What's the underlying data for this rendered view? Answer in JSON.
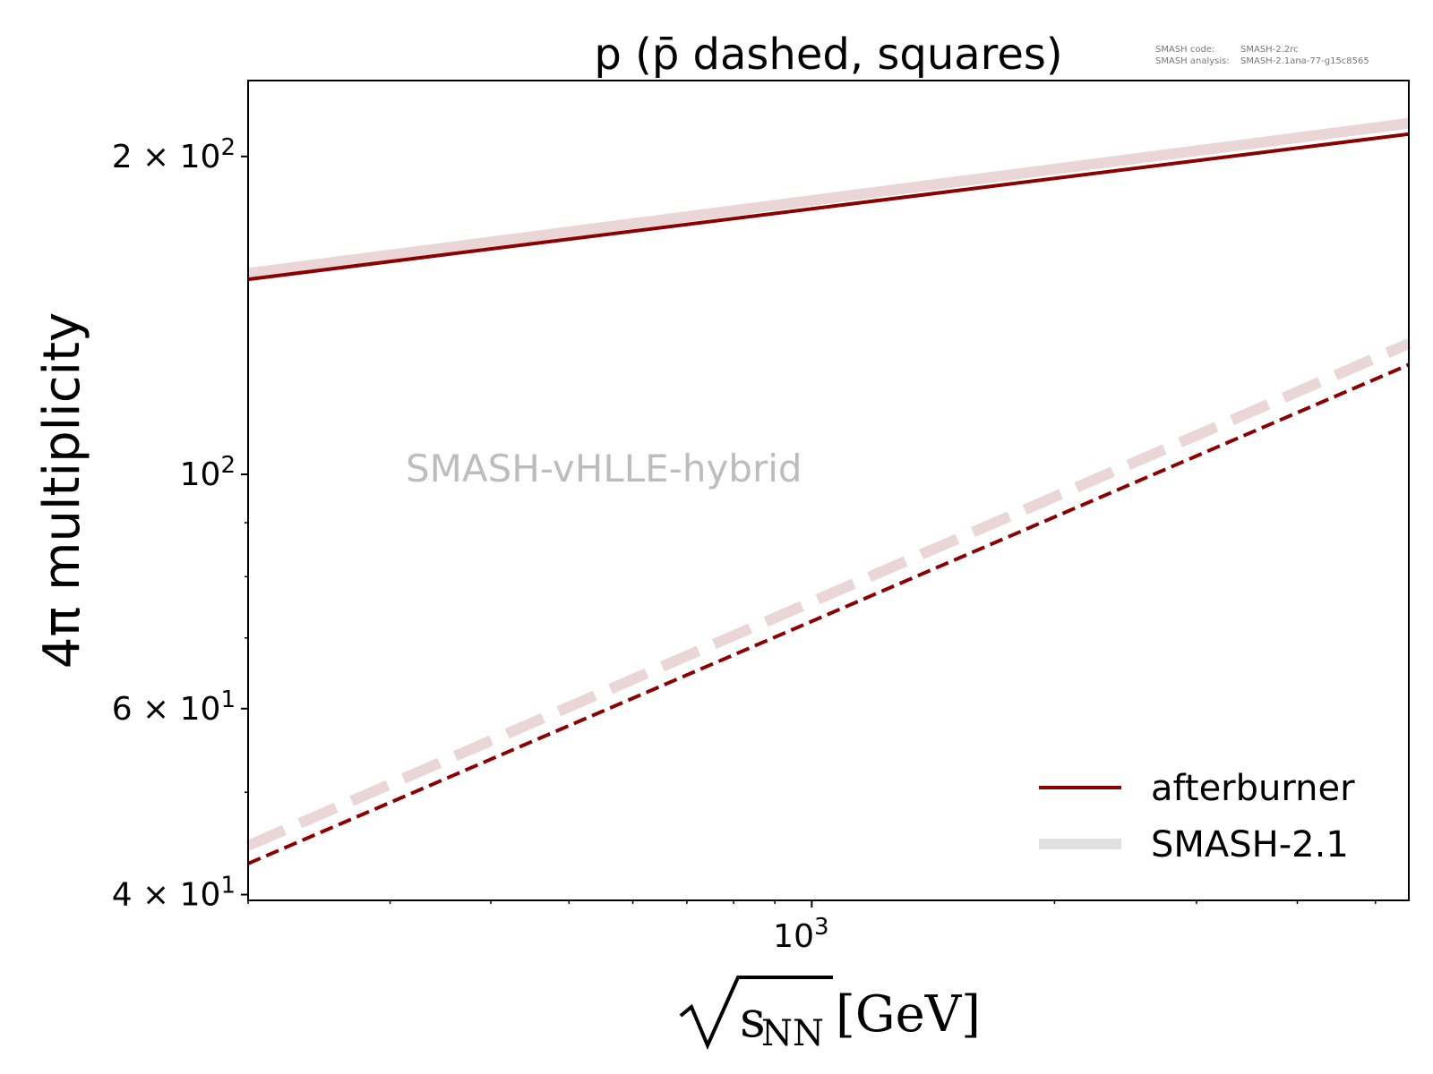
{
  "chart_data": {
    "type": "line",
    "title": "p (p̄ dashed, squares)",
    "xlabel": "[GeV]",
    "xlabel_radicand": "s",
    "xlabel_radicand_sub": "NN",
    "ylabel": "4π multiplicity",
    "xscale": "log",
    "yscale": "log",
    "xlim": [
      200,
      5500
    ],
    "ylim": [
      39.5,
      236
    ],
    "x_ticks": [
      {
        "value": 1000,
        "base": "10",
        "exp": "3"
      }
    ],
    "y_ticks": [
      {
        "value": 40,
        "mant": "4 × 10",
        "exp": "1"
      },
      {
        "value": 60,
        "mant": "6 × 10",
        "exp": "1"
      },
      {
        "value": 100,
        "mant": "10",
        "exp": "2"
      },
      {
        "value": 200,
        "mant": "2 × 10",
        "exp": "2"
      }
    ],
    "grid": false,
    "legend_position": "bottom-right",
    "annotation": "SMASH-vHLLE-hybrid",
    "meta_text": {
      "line1_key": "SMASH code:",
      "line1_val": "SMASH-2.2rc",
      "line2_key": "SMASH analysis:",
      "line2_val": "SMASH-2.1ana-77-g15c8565"
    },
    "legend": [
      {
        "label": "afterburner",
        "color": "#8b0000"
      },
      {
        "label": "SMASH-2.1",
        "color": "#e0e0e0"
      }
    ],
    "series": [
      {
        "name": "afterburner",
        "particle": "p",
        "style": "solid",
        "color": "#8b0000",
        "x": [
          200,
          5500
        ],
        "y": [
          153,
          210
        ]
      },
      {
        "name": "SMASH-2.1",
        "particle": "p",
        "style": "solid",
        "color": "#ead6d6",
        "x": [
          200,
          5500
        ],
        "y": [
          155,
          215
        ]
      },
      {
        "name": "afterburner",
        "particle": "p̄",
        "style": "dashed",
        "color": "#8b0000",
        "x": [
          200,
          5500
        ],
        "y": [
          42.8,
          127
        ]
      },
      {
        "name": "SMASH-2.1",
        "particle": "p̄",
        "style": "dashed",
        "color": "#ead6d6",
        "x": [
          200,
          5500
        ],
        "y": [
          44.5,
          133
        ]
      }
    ]
  }
}
